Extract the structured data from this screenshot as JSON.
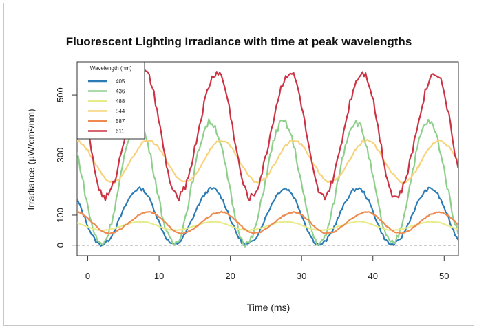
{
  "chart_data": {
    "type": "line",
    "title": "Fluorescent Lighting Irradiance with time at peak wavelengths",
    "xlabel": "Time (ms)",
    "ylabel": "Irradiance (µW/cm²/nm)",
    "xlim": [
      -1.5,
      52
    ],
    "ylim": [
      -35,
      610
    ],
    "x_ticks": [
      0,
      10,
      20,
      30,
      40,
      50
    ],
    "y_ticks": [
      0,
      100,
      300,
      500
    ],
    "reference_line": {
      "y": 0,
      "style": "dashed"
    },
    "legend": {
      "title": "Wavelength (nm)",
      "placement": "top-left"
    },
    "period_ms": 10.2,
    "series": [
      {
        "name": "405",
        "color": "#2b7bb6",
        "min": 2,
        "max": 188,
        "min_phase_ms": 1.9,
        "max_phase_ms": 7.3
      },
      {
        "name": "436",
        "color": "#8fcf8c",
        "min": 5,
        "max": 410,
        "min_phase_ms": 1.9,
        "max_phase_ms": 7.0
      },
      {
        "name": "488",
        "color": "#e8eb8a",
        "min": 50,
        "max": 78,
        "min_phase_ms": 2.0,
        "max_phase_ms": 7.5
      },
      {
        "name": "544",
        "color": "#f7d27a",
        "min": 210,
        "max": 348,
        "min_phase_ms": 3.5,
        "max_phase_ms": 8.5
      },
      {
        "name": "587",
        "color": "#ee8a4f",
        "min": 40,
        "max": 110,
        "min_phase_ms": 3.0,
        "max_phase_ms": 8.5
      },
      {
        "name": "611",
        "color": "#cc3344",
        "min": 160,
        "max": 575,
        "min_phase_ms": 2.4,
        "max_phase_ms": 8.0
      }
    ]
  }
}
